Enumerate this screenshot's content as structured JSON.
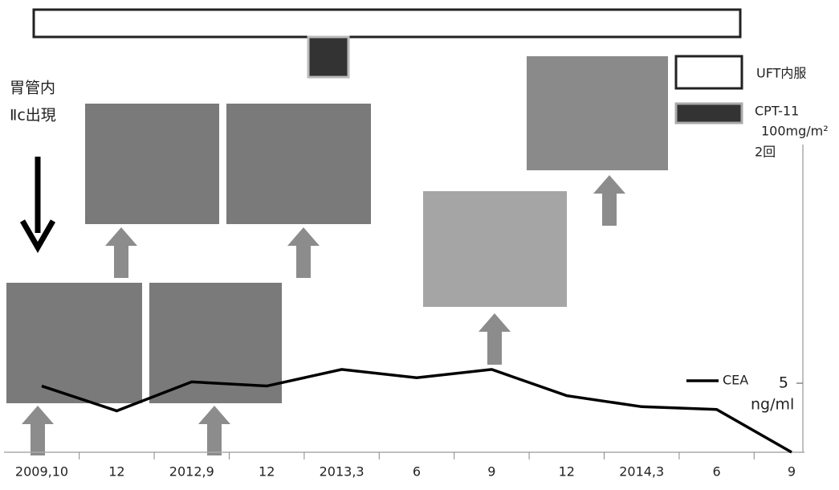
{
  "chart_data": {
    "type": "line",
    "categories": [
      "2009,10",
      "12",
      "2012,9",
      "12",
      "2013,3",
      "6",
      "9",
      "12",
      "2014,3",
      "6",
      "9"
    ],
    "series": [
      {
        "name": "CEA",
        "color": "#000000",
        "values": [
          4.8,
          3.0,
          5.1,
          4.8,
          6.0,
          5.4,
          6.0,
          4.1,
          3.3,
          3.1,
          0.0
        ]
      }
    ],
    "ylim": [
      0,
      22
    ],
    "yticks": [
      5
    ],
    "y_label": "ng/ml",
    "annotations": {
      "event": [
        "胃管内",
        "Ⅱc出現"
      ],
      "uft": "UFT内服",
      "cpt": "CPT-11",
      "dose": "100mg/m²",
      "times": "2回"
    }
  }
}
